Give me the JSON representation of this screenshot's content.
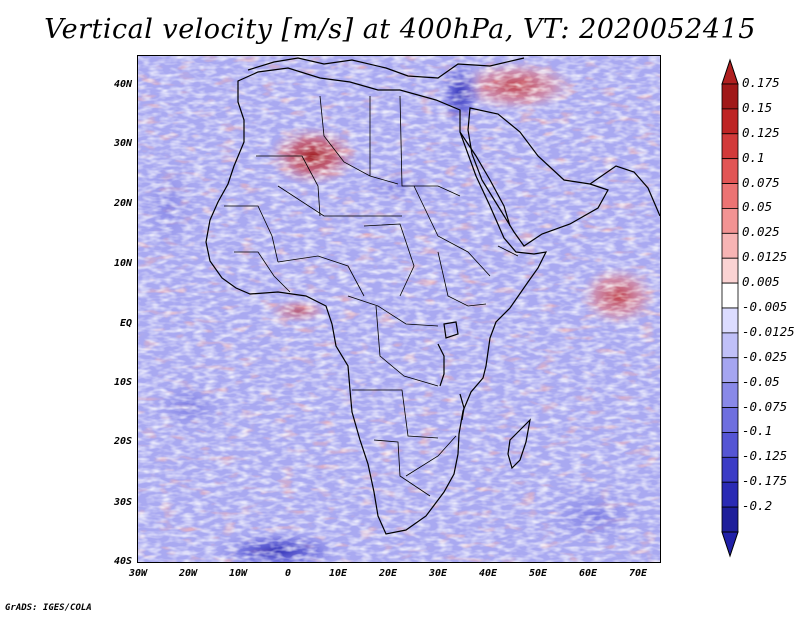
{
  "title": "Vertical velocity [m/s] at 400hPa, VT: 2020052415",
  "map": {
    "lat_labels": [
      "40N",
      "30N",
      "20N",
      "10N",
      "EQ",
      "10S",
      "20S",
      "30S",
      "40S"
    ],
    "lon_labels": [
      "30W",
      "20W",
      "10W",
      "0",
      "10E",
      "20E",
      "30E",
      "40E",
      "50E",
      "60E",
      "70E"
    ]
  },
  "colorbar": {
    "labels": [
      "0.175",
      "0.15",
      "0.125",
      "0.1",
      "0.075",
      "0.05",
      "0.025",
      "0.0125",
      "0.005",
      "-0.005",
      "-0.0125",
      "-0.025",
      "-0.05",
      "-0.075",
      "-0.1",
      "-0.125",
      "-0.175",
      "-0.2"
    ],
    "colors": [
      "#a01818",
      "#be2424",
      "#d23a3a",
      "#e25555",
      "#ec7373",
      "#f29393",
      "#f7b4b4",
      "#fbd3d3",
      "#ffffff",
      "#dcdcff",
      "#c0c0f8",
      "#a5a5f0",
      "#8989e8",
      "#6f6fdf",
      "#5555d4",
      "#3c3cc6",
      "#2a2ab4",
      "#1e1e9a"
    ],
    "top_color": "#b02020",
    "bottom_color": "#2020a8"
  },
  "credit": "GrADS: IGES/COLA"
}
